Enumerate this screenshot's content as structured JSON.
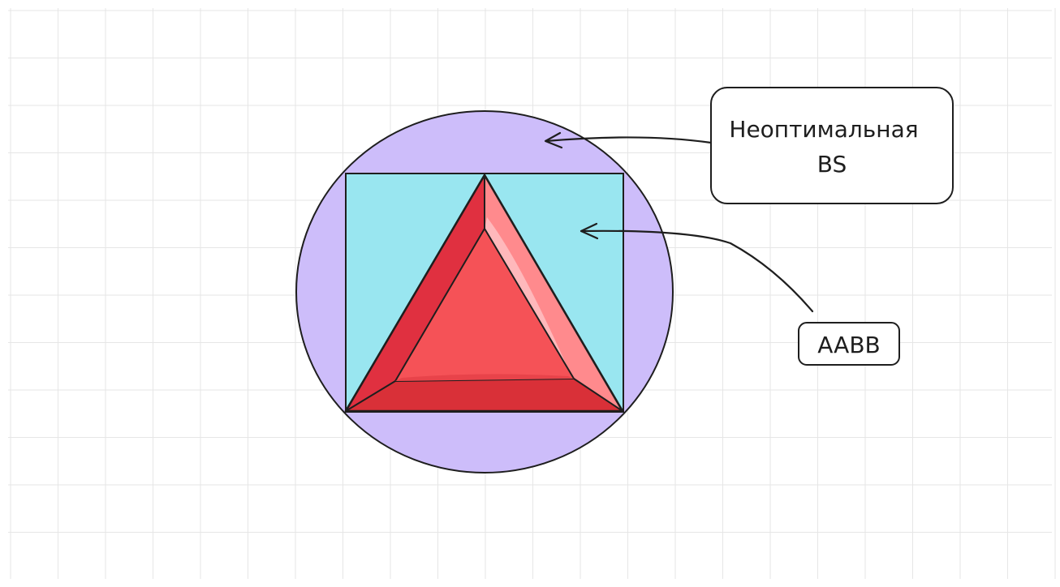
{
  "diagram": {
    "labels": {
      "bs_line1": "Неоптимальная",
      "bs_line2": "BS",
      "aabb": "AABB"
    },
    "colors": {
      "grid": "#e6e6e6",
      "stroke": "#1e1e1e",
      "sphere_fill": "#cdbdfa",
      "aabb_fill": "#99e6f0",
      "triangle_main": "#f55257",
      "triangle_dark": "#d42a36",
      "triangle_darker": "#b81e52",
      "triangle_light": "#ff8a8d",
      "triangle_highlight": "#ffb8bb",
      "label_bg": "#ffffff"
    }
  }
}
